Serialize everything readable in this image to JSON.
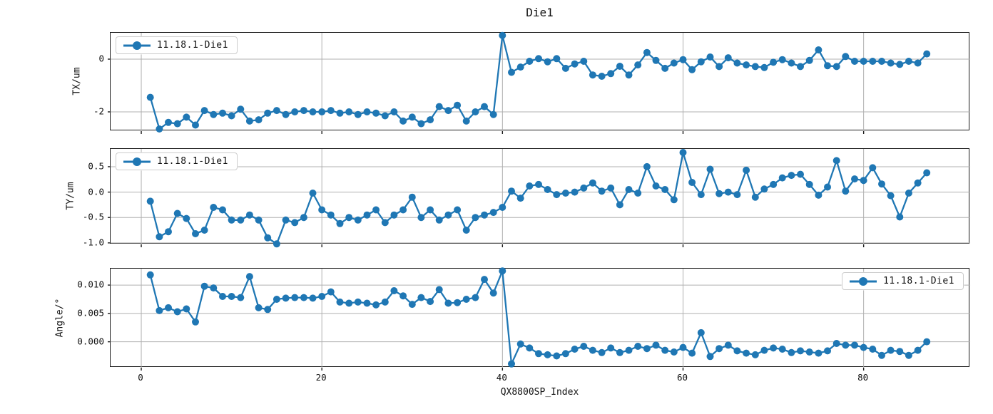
{
  "chart_data": {
    "type": "line",
    "title": "Die1",
    "series_name": "11.18.1-Die1",
    "line_color": "#1f77b4",
    "grid_color": "#b0b0b0",
    "grid": true,
    "xlabel": "QX8800SP_Index",
    "xlim": [
      -3.4,
      91.8
    ],
    "xticks": [
      {
        "v": 0,
        "label": "0"
      },
      {
        "v": 20,
        "label": "20"
      },
      {
        "v": 40,
        "label": "40"
      },
      {
        "v": 60,
        "label": "60"
      },
      {
        "v": 80,
        "label": "80"
      }
    ],
    "x": [
      1,
      2,
      3,
      4,
      5,
      6,
      7,
      8,
      9,
      10,
      11,
      12,
      13,
      14,
      15,
      16,
      17,
      18,
      19,
      20,
      21,
      22,
      23,
      24,
      25,
      26,
      27,
      28,
      29,
      30,
      31,
      32,
      33,
      34,
      35,
      36,
      37,
      38,
      39,
      40,
      41,
      42,
      43,
      44,
      45,
      46,
      47,
      48,
      49,
      50,
      51,
      52,
      53,
      54,
      55,
      56,
      57,
      58,
      59,
      60,
      61,
      62,
      63,
      64,
      65,
      66,
      67,
      68,
      69,
      70,
      71,
      72,
      73,
      74,
      75,
      76,
      77,
      78,
      79,
      80,
      81,
      82,
      83,
      84,
      85,
      86,
      87
    ],
    "subplots": [
      {
        "ylabel": "TX/um",
        "ylim": [
          -2.73,
          1.0
        ],
        "yticks": [
          {
            "v": 0,
            "label": "0"
          },
          {
            "v": -2,
            "label": "-2"
          }
        ],
        "legend_loc": "upper-left",
        "y": [
          -1.45,
          -2.65,
          -2.4,
          -2.45,
          -2.2,
          -2.5,
          -1.95,
          -2.1,
          -2.05,
          -2.15,
          -1.9,
          -2.35,
          -2.3,
          -2.05,
          -1.95,
          -2.1,
          -2.0,
          -1.95,
          -2.0,
          -2.0,
          -1.95,
          -2.05,
          -2.0,
          -2.1,
          -2.0,
          -2.05,
          -2.15,
          -2.0,
          -2.35,
          -2.2,
          -2.45,
          -2.3,
          -1.8,
          -1.95,
          -1.75,
          -2.35,
          -2.0,
          -1.8,
          -2.1,
          0.9,
          -0.5,
          -0.3,
          -0.08,
          0.02,
          -0.1,
          0.02,
          -0.35,
          -0.18,
          -0.08,
          -0.6,
          -0.65,
          -0.55,
          -0.27,
          -0.6,
          -0.22,
          0.25,
          -0.05,
          -0.35,
          -0.15,
          -0.02,
          -0.4,
          -0.1,
          0.08,
          -0.28,
          0.05,
          -0.15,
          -0.22,
          -0.28,
          -0.32,
          -0.12,
          -0.02,
          -0.15,
          -0.28,
          -0.05,
          0.35,
          -0.25,
          -0.28,
          0.1,
          -0.08,
          -0.08,
          -0.08,
          -0.08,
          -0.15,
          -0.2,
          -0.08,
          -0.15,
          0.2
        ]
      },
      {
        "ylabel": "TY/um",
        "ylim": [
          -1.03,
          0.85
        ],
        "yticks": [
          {
            "v": 0.5,
            "label": "0.5"
          },
          {
            "v": 0.0,
            "label": "0.0"
          },
          {
            "v": -0.5,
            "label": "-0.5"
          },
          {
            "v": -1.0,
            "label": "-1.0"
          }
        ],
        "legend_loc": "upper-left",
        "y": [
          -0.18,
          -0.88,
          -0.78,
          -0.42,
          -0.52,
          -0.82,
          -0.75,
          -0.3,
          -0.35,
          -0.55,
          -0.55,
          -0.45,
          -0.55,
          -0.9,
          -1.02,
          -0.55,
          -0.6,
          -0.5,
          -0.02,
          -0.35,
          -0.45,
          -0.62,
          -0.5,
          -0.55,
          -0.45,
          -0.35,
          -0.6,
          -0.45,
          -0.35,
          -0.1,
          -0.5,
          -0.35,
          -0.55,
          -0.45,
          -0.35,
          -0.75,
          -0.5,
          -0.45,
          -0.4,
          -0.3,
          0.02,
          -0.12,
          0.12,
          0.15,
          0.05,
          -0.05,
          -0.02,
          0.0,
          0.08,
          0.18,
          0.02,
          0.08,
          -0.25,
          0.05,
          -0.02,
          0.5,
          0.12,
          0.05,
          -0.15,
          0.78,
          0.19,
          -0.05,
          0.45,
          -0.03,
          0.0,
          -0.05,
          0.43,
          -0.1,
          0.06,
          0.15,
          0.28,
          0.33,
          0.35,
          0.15,
          -0.06,
          0.1,
          0.62,
          0.02,
          0.26,
          0.23,
          0.48,
          0.16,
          -0.07,
          -0.49,
          -0.02,
          0.18,
          0.38
        ]
      },
      {
        "ylabel": "Angle/°",
        "ylim": [
          -0.00457,
          0.0129
        ],
        "yticks": [
          {
            "v": 0.01,
            "label": "0.010"
          },
          {
            "v": 0.005,
            "label": "0.005"
          },
          {
            "v": 0.0,
            "label": "0.000"
          }
        ],
        "legend_loc": "upper-right",
        "y": [
          0.0118,
          0.0055,
          0.006,
          0.0053,
          0.0058,
          0.0035,
          0.0098,
          0.0095,
          0.008,
          0.008,
          0.0078,
          0.0115,
          0.006,
          0.0057,
          0.0075,
          0.0077,
          0.0078,
          0.0078,
          0.0077,
          0.008,
          0.0088,
          0.007,
          0.0068,
          0.007,
          0.0068,
          0.0065,
          0.007,
          0.009,
          0.0081,
          0.0066,
          0.0078,
          0.0071,
          0.0092,
          0.0068,
          0.0069,
          0.0075,
          0.0078,
          0.011,
          0.0086,
          0.0125,
          -0.0039,
          -0.0004,
          -0.0011,
          -0.0021,
          -0.0023,
          -0.0025,
          -0.0021,
          -0.0013,
          -0.0008,
          -0.0015,
          -0.0019,
          -0.0011,
          -0.0019,
          -0.0015,
          -0.0008,
          -0.0012,
          -0.0006,
          -0.0015,
          -0.0018,
          -0.001,
          -0.002,
          0.0016,
          -0.0026,
          -0.0012,
          -0.0006,
          -0.0016,
          -0.002,
          -0.0023,
          -0.0015,
          -0.0011,
          -0.0013,
          -0.0019,
          -0.0016,
          -0.0018,
          -0.002,
          -0.0016,
          -0.0003,
          -0.0006,
          -0.0006,
          -0.001,
          -0.0013,
          -0.0024,
          -0.0015,
          -0.0017,
          -0.0024,
          -0.0015,
          0.0
        ]
      }
    ]
  }
}
